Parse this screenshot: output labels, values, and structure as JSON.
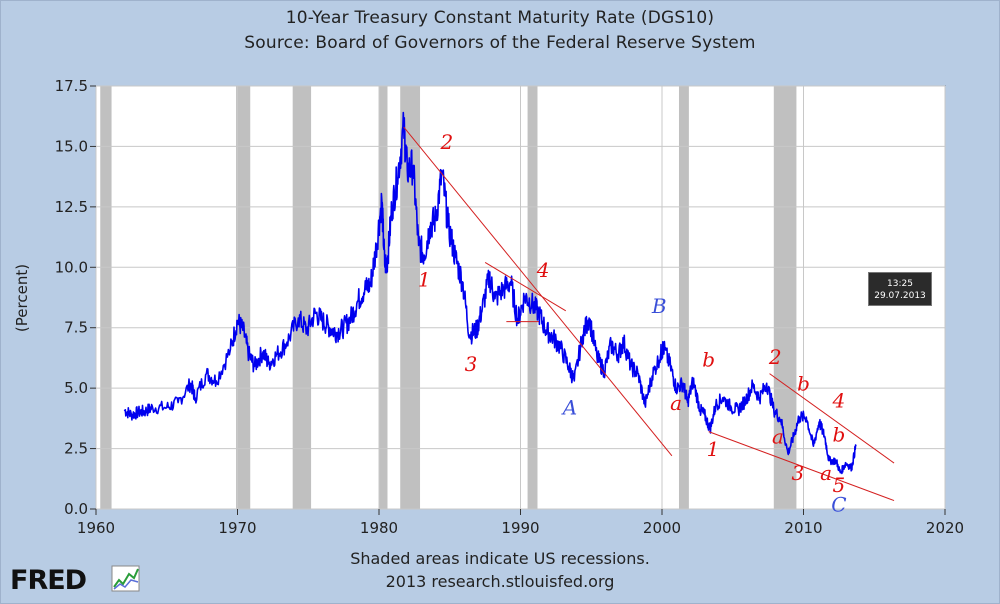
{
  "header": {
    "title": "10-Year Treasury Constant Maturity Rate (DGS10)",
    "subtitle": "Source: Board of Governors of the Federal Reserve System"
  },
  "footer": {
    "note": "Shaded areas indicate US recessions.",
    "credit": "2013 research.stlouisfed.org"
  },
  "logo": {
    "text": "FRED"
  },
  "timestamp": {
    "time": "13:25",
    "date": "29.07.2013"
  },
  "colors": {
    "background": "#b8cce4",
    "plot_background": "#ffffff",
    "series": "#0000ee",
    "recession": "#c0c0c0",
    "trendline": "#d42020",
    "annotation_red": "#e01010",
    "annotation_blue": "#3a4fd8"
  },
  "chart_data": {
    "type": "line",
    "title": "10-Year Treasury Constant Maturity Rate (DGS10)",
    "subtitle": "Source: Board of Governors of the Federal Reserve System",
    "xlabel": "",
    "ylabel": "(Percent)",
    "xlim": [
      1960,
      2020
    ],
    "ylim": [
      0,
      17.5
    ],
    "x_ticks": [
      1960,
      1970,
      1980,
      1990,
      2000,
      2010,
      2020
    ],
    "y_ticks": [
      0.0,
      2.5,
      5.0,
      7.5,
      10.0,
      12.5,
      15.0,
      17.5
    ],
    "y_tick_labels": [
      "0.0",
      "2.5",
      "5.0",
      "7.5",
      "10.0",
      "12.5",
      "15.0",
      "17.5"
    ],
    "grid": true,
    "recessions": [
      [
        1960.3,
        1961.1
      ],
      [
        1969.9,
        1970.9
      ],
      [
        1973.9,
        1975.2
      ],
      [
        1980.0,
        1980.6
      ],
      [
        1981.5,
        1982.9
      ],
      [
        1990.5,
        1991.2
      ],
      [
        2001.2,
        2001.9
      ],
      [
        2007.9,
        2009.5
      ]
    ],
    "series": [
      {
        "values": [
          [
            1962.0,
            4.1
          ],
          [
            1962.5,
            3.9
          ],
          [
            1963.0,
            4.0
          ],
          [
            1963.5,
            4.05
          ],
          [
            1964.0,
            4.2
          ],
          [
            1965.0,
            4.2
          ],
          [
            1965.8,
            4.4
          ],
          [
            1966.7,
            5.2
          ],
          [
            1967.0,
            4.6
          ],
          [
            1967.8,
            5.6
          ],
          [
            1968.5,
            5.3
          ],
          [
            1969.5,
            6.6
          ],
          [
            1970.0,
            7.8
          ],
          [
            1970.4,
            7.4
          ],
          [
            1970.8,
            6.4
          ],
          [
            1971.2,
            5.9
          ],
          [
            1971.8,
            6.5
          ],
          [
            1972.2,
            6.0
          ],
          [
            1972.8,
            6.4
          ],
          [
            1973.5,
            6.9
          ],
          [
            1974.3,
            7.9
          ],
          [
            1974.9,
            7.4
          ],
          [
            1975.5,
            8.1
          ],
          [
            1976.0,
            7.8
          ],
          [
            1976.5,
            7.5
          ],
          [
            1977.0,
            7.3
          ],
          [
            1977.5,
            7.5
          ],
          [
            1978.0,
            7.9
          ],
          [
            1978.5,
            8.6
          ],
          [
            1979.0,
            9.1
          ],
          [
            1979.4,
            9.3
          ],
          [
            1979.8,
            10.8
          ],
          [
            1980.2,
            12.8
          ],
          [
            1980.4,
            10.1
          ],
          [
            1980.6,
            10.3
          ],
          [
            1980.9,
            12.4
          ],
          [
            1981.3,
            13.7
          ],
          [
            1981.75,
            15.8
          ],
          [
            1982.0,
            14.0
          ],
          [
            1982.4,
            14.2
          ],
          [
            1982.8,
            10.9
          ],
          [
            1983.2,
            10.5
          ],
          [
            1983.6,
            11.7
          ],
          [
            1984.0,
            12.0
          ],
          [
            1984.45,
            13.9
          ],
          [
            1984.9,
            11.7
          ],
          [
            1985.4,
            10.4
          ],
          [
            1985.9,
            9.4
          ],
          [
            1986.4,
            7.2
          ],
          [
            1986.9,
            7.4
          ],
          [
            1987.3,
            8.3
          ],
          [
            1987.8,
            9.6
          ],
          [
            1988.2,
            8.7
          ],
          [
            1988.8,
            9.1
          ],
          [
            1989.3,
            9.4
          ],
          [
            1989.8,
            7.8
          ],
          [
            1990.3,
            8.8
          ],
          [
            1990.8,
            8.5
          ],
          [
            1991.3,
            8.1
          ],
          [
            1991.8,
            7.4
          ],
          [
            1992.3,
            7.1
          ],
          [
            1992.8,
            6.7
          ],
          [
            1993.4,
            5.9
          ],
          [
            1993.8,
            5.3
          ],
          [
            1994.4,
            7.2
          ],
          [
            1994.85,
            7.9
          ],
          [
            1995.4,
            6.3
          ],
          [
            1995.9,
            5.7
          ],
          [
            1996.4,
            6.8
          ],
          [
            1996.9,
            6.4
          ],
          [
            1997.3,
            6.9
          ],
          [
            1997.8,
            5.9
          ],
          [
            1998.3,
            5.6
          ],
          [
            1998.8,
            4.3
          ],
          [
            1999.3,
            5.5
          ],
          [
            1999.9,
            6.4
          ],
          [
            2000.1,
            6.7
          ],
          [
            2000.6,
            5.9
          ],
          [
            2001.0,
            5.0
          ],
          [
            2001.5,
            5.2
          ],
          [
            2001.8,
            4.4
          ],
          [
            2002.2,
            5.3
          ],
          [
            2002.7,
            4.1
          ],
          [
            2003.0,
            3.9
          ],
          [
            2003.4,
            3.3
          ],
          [
            2003.8,
            4.3
          ],
          [
            2004.3,
            4.6
          ],
          [
            2004.9,
            4.2
          ],
          [
            2005.4,
            4.1
          ],
          [
            2005.9,
            4.5
          ],
          [
            2006.4,
            5.1
          ],
          [
            2006.9,
            4.6
          ],
          [
            2007.4,
            5.2
          ],
          [
            2007.9,
            4.1
          ],
          [
            2008.4,
            3.7
          ],
          [
            2008.9,
            2.3
          ],
          [
            2009.3,
            3.0
          ],
          [
            2009.7,
            3.8
          ],
          [
            2010.2,
            3.8
          ],
          [
            2010.7,
            2.6
          ],
          [
            2011.1,
            3.6
          ],
          [
            2011.5,
            3.0
          ],
          [
            2011.8,
            2.0
          ],
          [
            2012.3,
            2.0
          ],
          [
            2012.6,
            1.5
          ],
          [
            2013.0,
            1.9
          ],
          [
            2013.4,
            1.7
          ],
          [
            2013.7,
            2.6
          ]
        ]
      }
    ],
    "trendlines": [
      {
        "from": [
          1981.75,
          15.8
        ],
        "to": [
          2000.7,
          2.2
        ]
      },
      {
        "from": [
          1987.5,
          10.2
        ],
        "to": [
          1993.2,
          8.2
        ]
      },
      {
        "from": [
          1989.0,
          7.75
        ],
        "to": [
          1991.3,
          7.75
        ]
      },
      {
        "from": [
          2003.3,
          3.2
        ],
        "to": [
          2016.4,
          0.35
        ]
      },
      {
        "from": [
          2007.6,
          5.6
        ],
        "to": [
          2016.4,
          1.9
        ]
      }
    ],
    "annotations": [
      {
        "text": "2",
        "x": 1984.8,
        "y": 14.9,
        "color": "red"
      },
      {
        "text": "1",
        "x": 1983.2,
        "y": 9.2,
        "color": "red"
      },
      {
        "text": "3",
        "x": 1986.5,
        "y": 5.7,
        "color": "red"
      },
      {
        "text": "4",
        "x": 1991.6,
        "y": 9.6,
        "color": "red"
      },
      {
        "text": "B",
        "x": 1999.8,
        "y": 8.1,
        "color": "blue"
      },
      {
        "text": "A",
        "x": 1993.5,
        "y": 3.9,
        "color": "blue"
      },
      {
        "text": "b",
        "x": 2003.3,
        "y": 5.9,
        "color": "red"
      },
      {
        "text": "a",
        "x": 2001.0,
        "y": 4.1,
        "color": "red"
      },
      {
        "text": "1",
        "x": 2003.6,
        "y": 2.2,
        "color": "red"
      },
      {
        "text": "2",
        "x": 2008.0,
        "y": 6.0,
        "color": "red"
      },
      {
        "text": "b",
        "x": 2010.0,
        "y": 4.9,
        "color": "red"
      },
      {
        "text": "4",
        "x": 2012.5,
        "y": 4.2,
        "color": "red"
      },
      {
        "text": "a",
        "x": 2008.2,
        "y": 2.7,
        "color": "red"
      },
      {
        "text": "b",
        "x": 2012.5,
        "y": 2.8,
        "color": "red"
      },
      {
        "text": "3",
        "x": 2009.6,
        "y": 1.2,
        "color": "red"
      },
      {
        "text": "a",
        "x": 2011.6,
        "y": 1.2,
        "color": "red"
      },
      {
        "text": "5",
        "x": 2012.5,
        "y": 0.7,
        "color": "red"
      },
      {
        "text": "C",
        "x": 2012.5,
        "y": -0.1,
        "color": "blue"
      }
    ]
  }
}
